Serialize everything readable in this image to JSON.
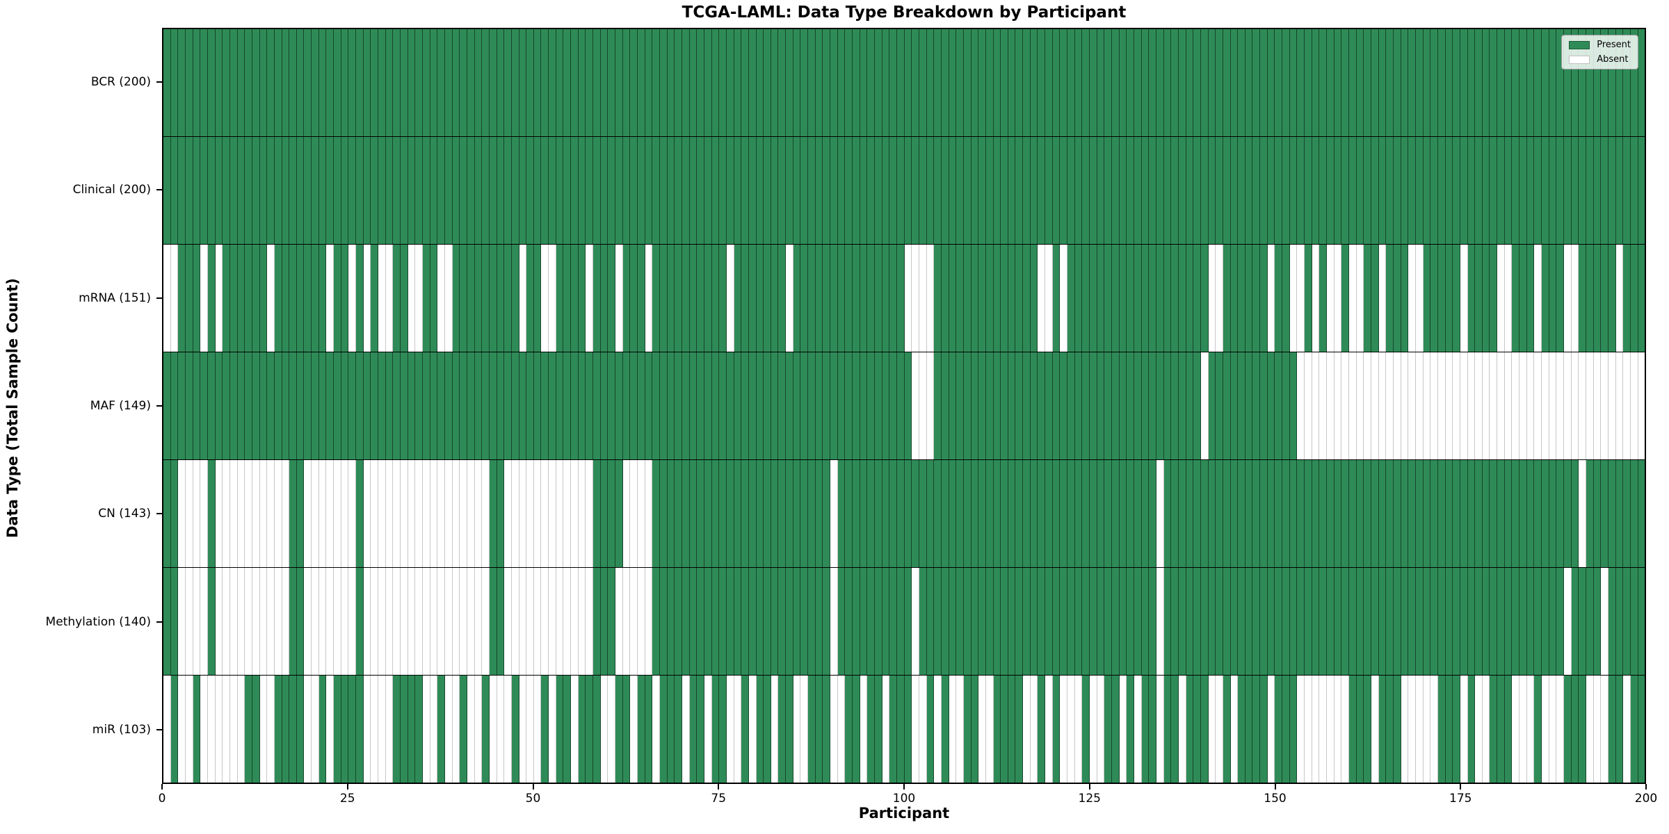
{
  "title": "TCGA-LAML: Data Type Breakdown by Participant",
  "x_axis": {
    "label": "Participant",
    "ticks": [
      "0",
      "25",
      "50",
      "75",
      "100",
      "125",
      "150",
      "175",
      "200"
    ]
  },
  "y_axis": {
    "label": "Data Type (Total Sample Count)"
  },
  "legend": {
    "present_label": "Present",
    "absent_label": "Absent",
    "position": "upper right"
  },
  "colors": {
    "present": "#2e8b57",
    "absent": "#ffffff",
    "grid_line": "#000000"
  },
  "chart_data": {
    "type": "heatmap",
    "x_range": [
      0,
      200
    ],
    "n_participants": 200,
    "cell_encoding": "pattern string per row: index = participant 0-199, 1 = Present, 0 = Absent",
    "rows": [
      {
        "name": "BCR",
        "label": "BCR (200)",
        "total_present": 200,
        "pattern": "11111111111111111111111111111111111111111111111111111111111111111111111111111111111111111111111111111111111111111111111111111111111111111111111111111111111111111111111111111111111111111111111111111111"
      },
      {
        "name": "Clinical",
        "label": "Clinical (200)",
        "total_present": 200,
        "pattern": "11111111111111111111111111111111111111111111111111111111111111111111111111111111111111111111111111111111111111111111111111111111111111111111111111111111111111111111111111111111111111111111111111111111"
      },
      {
        "name": "mRNA",
        "label": "mRNA (151)",
        "total_present": 151,
        "pattern": "00111010111111011111110110101001100110011111111101100111101110111011111111110111111101111111111111110000111111111111110010111111111111111111100111111011001010010011011100111110111100111011100111110111"
      },
      {
        "name": "MAF",
        "label": "MAF (149)",
        "total_present": 149,
        "pattern": "11111111111111111111111111111111111111111111111111111111111111111111111111111111111111111111111111111000111111111111111111111111111111111111011111111111100000000000000000000000000000000000000000000000"
      },
      {
        "name": "CN",
        "label": "CN (143)",
        "total_present": 143,
        "pattern": "11000010000000000110000000100000000000000000110000000000001111000011111111111111111111111101111111111111111111111111111111111111111111011111111111111111111111111111111111111111111111111111111011111111"
      },
      {
        "name": "Methylation",
        "label": "Methylation (140)",
        "total_present": 140,
        "pattern": "11000010000000000110000000100000000000000000110000000000001110000011111111111111111111111101111111111011111111111111111111111111111111011111111111111111111111111111111111111111111111111111101111011111"
      },
      {
        "name": "miR",
        "label": "miR (103)",
        "total_present": 103,
        "pattern": "01001000000110011110010111100001111001001001000100010110111001101101110110110010110110011100110110111001010011001111001010001001101011011011100101111011100000001110111000001110100111000100011100011011"
      }
    ]
  }
}
